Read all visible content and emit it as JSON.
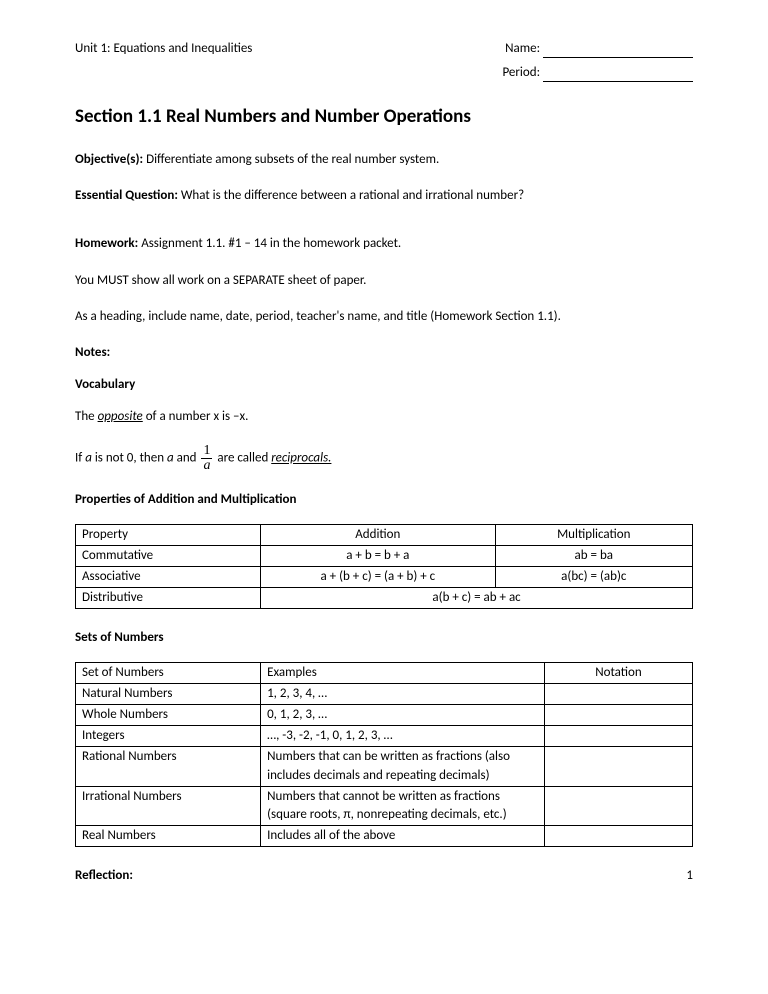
{
  "header": {
    "unit": "Unit 1: Equations and Inequalities",
    "name_label": "Name:",
    "period_label": "Period:"
  },
  "title": "Section 1.1 Real Numbers and Number Operations",
  "objective": {
    "label": "Objective(s):",
    "text": " Differentiate among subsets of the real number system."
  },
  "eq": {
    "label": "Essential Question:",
    "text": " What is the difference between a rational and irrational number?"
  },
  "homework": {
    "label": "Homework:",
    "text": " Assignment 1.1. #1 – 14 in the homework packet.",
    "line2": "You MUST show all work on a SEPARATE sheet of paper.",
    "line3": "As a heading, include name, date, period, teacher's name, and title (Homework Section 1.1)."
  },
  "notes_label": "Notes:",
  "vocab_label": "Vocabulary",
  "vocab1": {
    "pre": "The ",
    "term": "opposite",
    "post": " of a number x is –x."
  },
  "vocab2": {
    "pre": "If ",
    "a1": "a",
    "mid1": " is not 0, then ",
    "a2": "a",
    "mid2": " and ",
    "frac_num": "1",
    "frac_den": "a",
    "mid3": " are called ",
    "term": "reciprocals.",
    "post": ""
  },
  "props_label": "Properties of Addition and Multiplication",
  "props_table": {
    "h1": "Property",
    "h2": "Addition",
    "h3": "Multiplication",
    "r1c1": "Commutative",
    "r1c2": "a + b = b + a",
    "r1c3": "ab = ba",
    "r2c1": "Associative",
    "r2c2": "a + (b + c) = (a + b) + c",
    "r2c3": "a(bc) = (ab)c",
    "r3c1": "Distributive",
    "r3c23": "a(b + c) = ab + ac"
  },
  "sets_label": "Sets of Numbers",
  "sets_table": {
    "h1": "Set of Numbers",
    "h2": "Examples",
    "h3": "Notation",
    "r1c1": "Natural Numbers",
    "r1c2": "1, 2, 3, 4, …",
    "r1c3": "",
    "r2c1": "Whole Numbers",
    "r2c2": "0, 1, 2, 3, …",
    "r2c3": "",
    "r3c1": "Integers",
    "r3c2": "…, -3, -2, -1, 0, 1, 2, 3, …",
    "r3c3": "",
    "r4c1": "Rational Numbers",
    "r4c2": "Numbers that can be written as fractions (also includes decimals and repeating decimals)",
    "r4c3": "",
    "r5c1": "Irrational Numbers",
    "r5c2": "Numbers that cannot be written as fractions (square roots, π, nonrepeating decimals, etc.)",
    "r5c3": "",
    "r6c1": "Real Numbers",
    "r6c2": "Includes all of the above",
    "r6c3": ""
  },
  "footer": {
    "reflection": "Reflection:",
    "page": "1"
  }
}
